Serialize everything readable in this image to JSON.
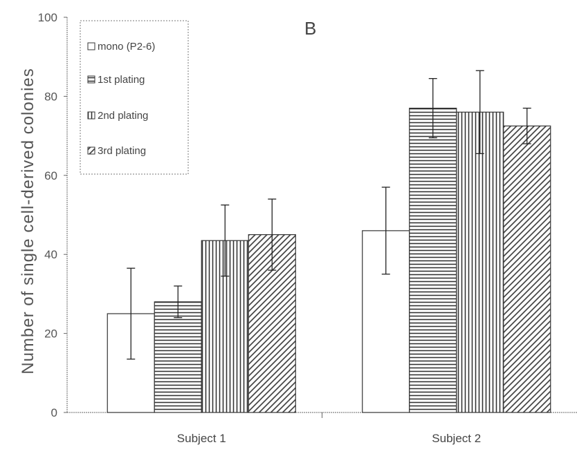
{
  "chart_data": {
    "type": "bar",
    "panel_label": "B",
    "title": "",
    "xlabel": "",
    "ylabel": "Number of single cell-derived colonies",
    "ylim": [
      0,
      100
    ],
    "yticks": [
      "0",
      "20",
      "40",
      "60",
      "80",
      "100"
    ],
    "categories": [
      "Subject 1",
      "Subject 2"
    ],
    "series": [
      {
        "name": "mono (P2-6)",
        "pattern": "open",
        "values": [
          25,
          46
        ],
        "errors": [
          11.5,
          11
        ]
      },
      {
        "name": "1st plating",
        "pattern": "horizontal",
        "values": [
          28,
          77
        ],
        "errors": [
          4,
          7.5
        ]
      },
      {
        "name": "2nd plating",
        "pattern": "vertical",
        "values": [
          43.5,
          76
        ],
        "errors": [
          9,
          10.5
        ]
      },
      {
        "name": "3rd plating",
        "pattern": "diagonal",
        "values": [
          45,
          72.5
        ],
        "errors": [
          9,
          4.5
        ]
      }
    ],
    "legend_position": "top-left",
    "grid": false,
    "colors": {
      "line": "#333333",
      "fill": "#ffffff"
    }
  }
}
